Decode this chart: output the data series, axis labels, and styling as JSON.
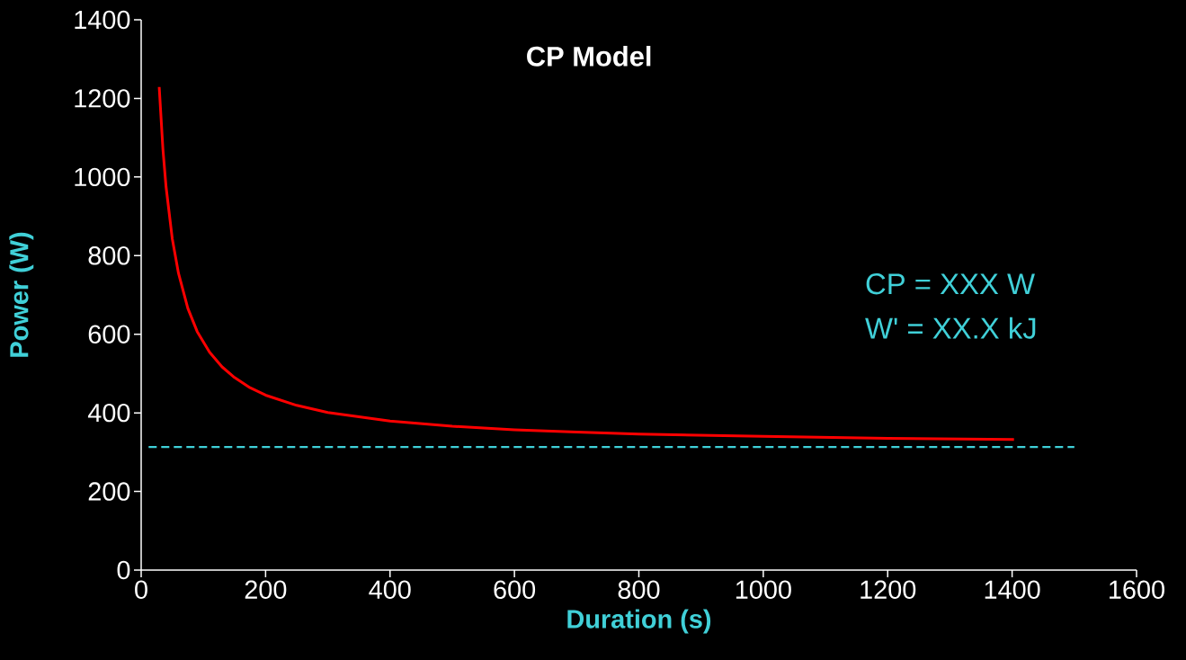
{
  "chart_data": {
    "type": "line",
    "title": "CP Model",
    "xlabel": "Duration (s)",
    "ylabel": "Power (W)",
    "annotations": [
      "CP = XXX W",
      "W'  = XX.X kJ"
    ],
    "xlim": [
      0,
      1600
    ],
    "ylim": [
      0,
      1400
    ],
    "xticks": [
      0,
      200,
      400,
      600,
      800,
      1000,
      1200,
      1400,
      1600
    ],
    "yticks": [
      0,
      200,
      400,
      600,
      800,
      1000,
      1200,
      1400
    ],
    "grid": false,
    "series": [
      {
        "color": "#ff0000",
        "line_style": "solid",
        "x": [
          29,
          35,
          40,
          50,
          60,
          75,
          90,
          110,
          130,
          150,
          175,
          200,
          250,
          300,
          400,
          500,
          600,
          700,
          800,
          1000,
          1200,
          1403
        ],
        "values": [
          1229,
          1070,
          975,
          843,
          755,
          666,
          607,
          554,
          517,
          490,
          464,
          445,
          419,
          401,
          379,
          366,
          357,
          351,
          346,
          340,
          335,
          332
        ]
      },
      {
        "color": "#3fd0d8",
        "line_style": "dashed",
        "x": [
          12,
          1500
        ],
        "values": [
          313,
          313
        ]
      }
    ]
  }
}
